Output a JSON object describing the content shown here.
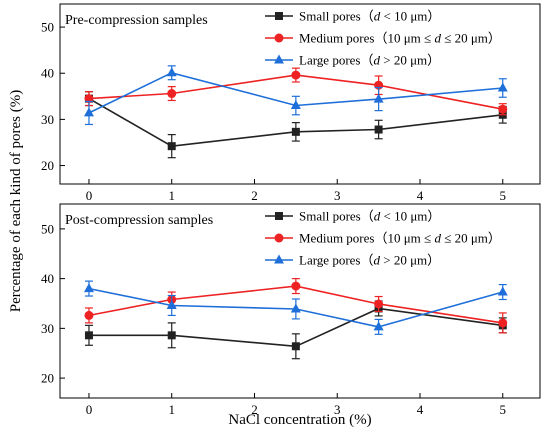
{
  "figure": {
    "ylabel": "Percentage of each kind of pores (%)",
    "xlabel": "NaCl concentration (%)"
  },
  "legend_entries": [
    {
      "prefix": "Small pores（",
      "var": "d",
      "rest": " < 10 μm）"
    },
    {
      "prefix": "Medium pores（10 μm ≤ ",
      "var": "d",
      "rest": " ≤ 20 μm）"
    },
    {
      "prefix": "Large pores（",
      "var": "d",
      "rest": " > 20 μm）"
    }
  ],
  "colors": {
    "small": "#222222",
    "medium": "#ee2222",
    "large": "#1e6fd9"
  },
  "chart_data": [
    {
      "type": "line",
      "title": "Pre-compression samples",
      "x": [
        0,
        1,
        2.5,
        3.5,
        5
      ],
      "xticks": [
        0,
        1,
        2,
        3,
        4,
        5
      ],
      "xlim": [
        -0.35,
        5.45
      ],
      "yticks": [
        20,
        30,
        40,
        50
      ],
      "ylim": [
        16,
        55
      ],
      "legend_position": "top-right",
      "series": [
        {
          "key": "small",
          "marker": "square",
          "values": [
            34.5,
            24.2,
            27.3,
            27.8,
            31.0
          ],
          "errors": [
            1.5,
            2.5,
            2.0,
            2.0,
            1.8
          ]
        },
        {
          "key": "medium",
          "marker": "circle",
          "values": [
            34.5,
            35.6,
            39.6,
            37.4,
            32.2
          ],
          "errors": [
            1.5,
            1.5,
            1.5,
            2.0,
            1.2
          ]
        },
        {
          "key": "large",
          "marker": "triangle",
          "values": [
            31.4,
            40.1,
            33.0,
            34.4,
            36.8
          ],
          "errors": [
            2.5,
            1.5,
            2.0,
            2.5,
            2.0
          ]
        }
      ]
    },
    {
      "type": "line",
      "title": "Post-compression samples",
      "x": [
        0,
        1,
        2.5,
        3.5,
        5
      ],
      "xticks": [
        0,
        1,
        2,
        3,
        4,
        5
      ],
      "xlim": [
        -0.35,
        5.45
      ],
      "yticks": [
        20,
        30,
        40,
        50
      ],
      "ylim": [
        16,
        55
      ],
      "legend_position": "top-right",
      "series": [
        {
          "key": "small",
          "marker": "square",
          "values": [
            28.6,
            28.6,
            26.4,
            34.0,
            30.6
          ],
          "errors": [
            2.0,
            2.5,
            2.5,
            1.5,
            1.5
          ]
        },
        {
          "key": "medium",
          "marker": "circle",
          "values": [
            32.6,
            35.8,
            38.5,
            34.9,
            31.1
          ],
          "errors": [
            1.5,
            1.5,
            1.5,
            1.5,
            2.0
          ]
        },
        {
          "key": "large",
          "marker": "triangle",
          "values": [
            38.0,
            34.6,
            33.9,
            30.3,
            37.3
          ],
          "errors": [
            1.5,
            2.0,
            2.0,
            1.5,
            1.5
          ]
        }
      ]
    }
  ]
}
